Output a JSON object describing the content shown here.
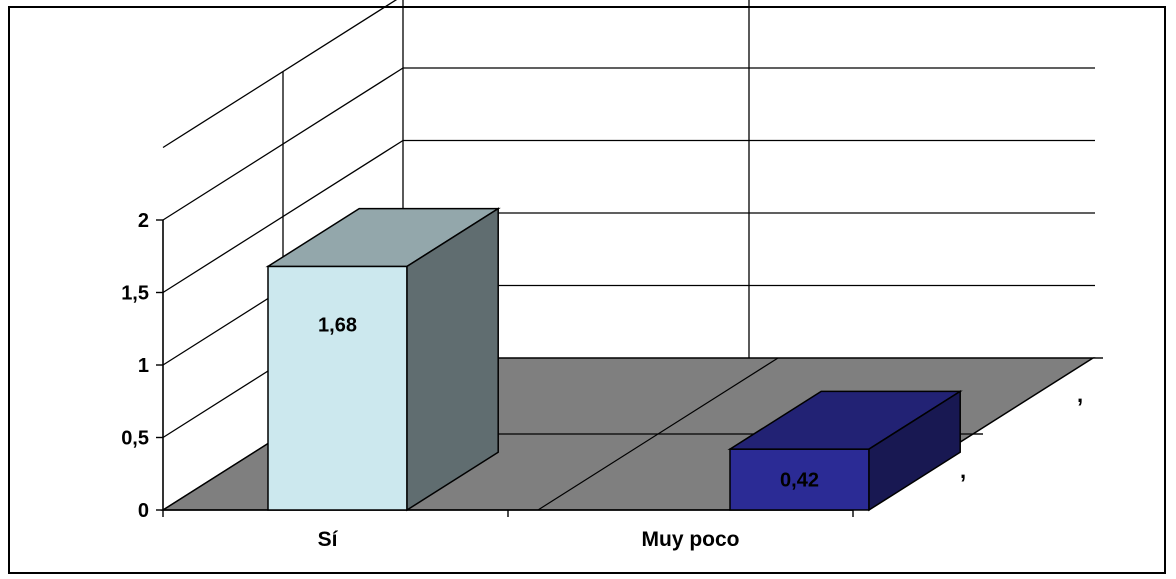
{
  "chart_data": {
    "type": "bar",
    "categories": [
      "Sí",
      "Muy poco"
    ],
    "series": [
      {
        "values": [
          1.68,
          0.42
        ],
        "colors": [
          "#cce8ee",
          "#2b2b95"
        ]
      }
    ],
    "data_labels": [
      "1,68",
      "0,42"
    ],
    "yticks": [
      {
        "value": 0,
        "label": "0"
      },
      {
        "value": 0.5,
        "label": "0,5"
      },
      {
        "value": 1,
        "label": "1"
      },
      {
        "value": 1.5,
        "label": "1,5"
      },
      {
        "value": 2,
        "label": "2"
      }
    ],
    "depth_labels": [
      ",",
      ","
    ],
    "ylim": [
      0,
      2
    ],
    "grid": true,
    "colors": {
      "floor": "#7f7f7f",
      "grid": "#000000",
      "background": "#ffffff"
    }
  }
}
